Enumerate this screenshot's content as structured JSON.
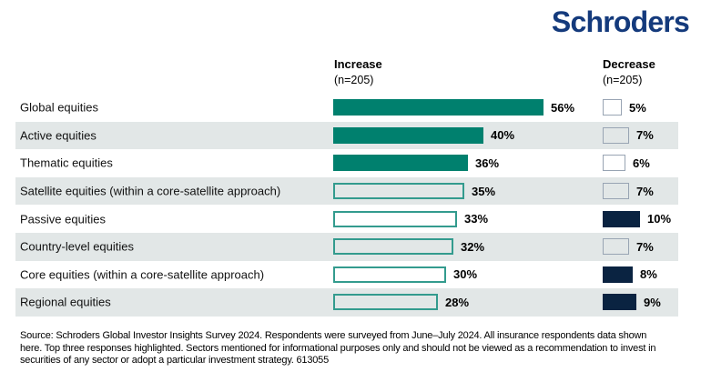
{
  "logo": {
    "text": "Schroders",
    "color": "#143a7c"
  },
  "columns": {
    "increase": {
      "label": "Increase",
      "sub": "(n=205)"
    },
    "decrease": {
      "label": "Decrease",
      "sub": "(n=205)"
    }
  },
  "chart_data": {
    "type": "bar",
    "orientation": "horizontal",
    "value_suffix": "%",
    "categories": [
      "Global equities",
      "Active equities",
      "Thematic equities",
      "Satellite equities (within a core-satellite approach)",
      "Passive equities",
      "Country-level equities",
      "Core equities (within a core-satellite approach)",
      "Regional equities"
    ],
    "series": [
      {
        "name": "Increase",
        "n_label": "(n=205)",
        "values": [
          56,
          40,
          36,
          35,
          33,
          32,
          30,
          28
        ],
        "highlighted": [
          true,
          true,
          true,
          false,
          false,
          false,
          false,
          false
        ]
      },
      {
        "name": "Decrease",
        "n_label": "(n=205)",
        "values": [
          5,
          7,
          6,
          7,
          10,
          7,
          8,
          9
        ],
        "highlighted": [
          false,
          false,
          false,
          false,
          true,
          false,
          true,
          true
        ]
      }
    ],
    "xlim": [
      0,
      60
    ],
    "legend_position": "top",
    "grid": false,
    "highlight_rule": "Top three responses highlighted"
  },
  "footer": {
    "text": "Source: Schroders Global Investor Insights Survey 2024. Respondents were surveyed from June–July 2024. All insurance respondents data shown here. Top three responses highlighted. Sectors mentioned for informational purposes only and should not be viewed as a recommendation to invest in securities of any sector or adopt a particular investment strategy. 613055"
  },
  "colors": {
    "teal_fill": "#00806e",
    "teal_outline": "#339b8e",
    "navy_fill": "#0a2341",
    "navy_outline": "#98a4b3",
    "row_band": "#e2e7e7",
    "logo_blue": "#143a7c"
  }
}
